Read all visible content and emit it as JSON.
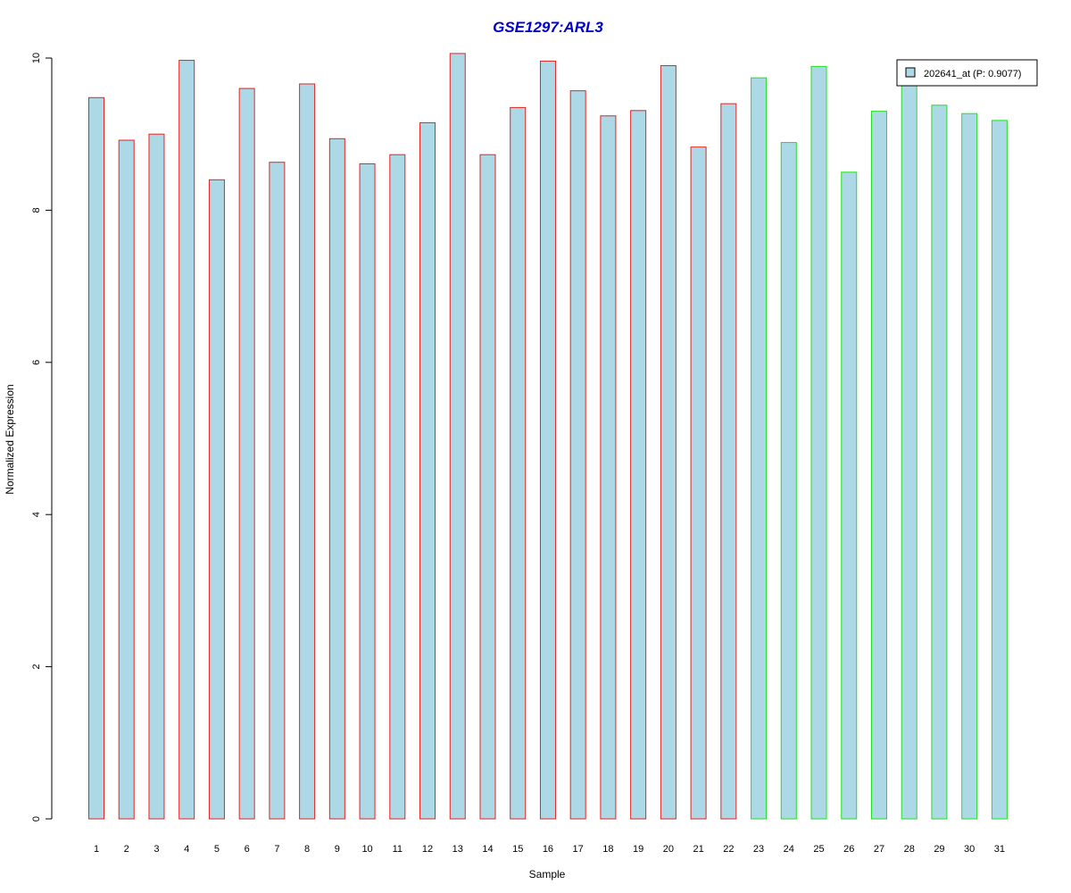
{
  "chart_data": {
    "type": "bar",
    "title": "GSE1297:ARL3",
    "xlabel": "Sample",
    "ylabel": "Normalized Expression",
    "ylim": [
      0,
      10
    ],
    "yticks": [
      "0",
      "2",
      "4",
      "6",
      "8",
      "10"
    ],
    "categories": [
      "1",
      "2",
      "3",
      "4",
      "5",
      "6",
      "7",
      "8",
      "9",
      "10",
      "11",
      "12",
      "13",
      "14",
      "15",
      "16",
      "17",
      "18",
      "19",
      "20",
      "21",
      "22",
      "23",
      "24",
      "25",
      "26",
      "27",
      "28",
      "29",
      "30",
      "31"
    ],
    "series": [
      {
        "name": "202641_at (P: 0.9077)",
        "values": [
          9.48,
          8.92,
          9.0,
          9.97,
          8.4,
          9.6,
          8.63,
          9.66,
          8.94,
          8.61,
          8.73,
          9.15,
          10.06,
          8.73,
          9.35,
          9.96,
          9.57,
          9.24,
          9.31,
          9.9,
          8.83,
          9.4,
          9.74,
          8.89,
          9.89,
          8.5,
          9.3,
          9.7,
          9.38,
          9.27,
          9.18
        ]
      }
    ],
    "groups": [
      {
        "samples": [
          1,
          22
        ],
        "border_color": "#e8221e"
      },
      {
        "samples": [
          23,
          31
        ],
        "border_color": "#22e021"
      }
    ],
    "bar_fill": "#add8e6",
    "title_color": "#0000cc",
    "legend": {
      "label": "202641_at (P: 0.9077)",
      "position": "top-right"
    },
    "grid": false
  }
}
